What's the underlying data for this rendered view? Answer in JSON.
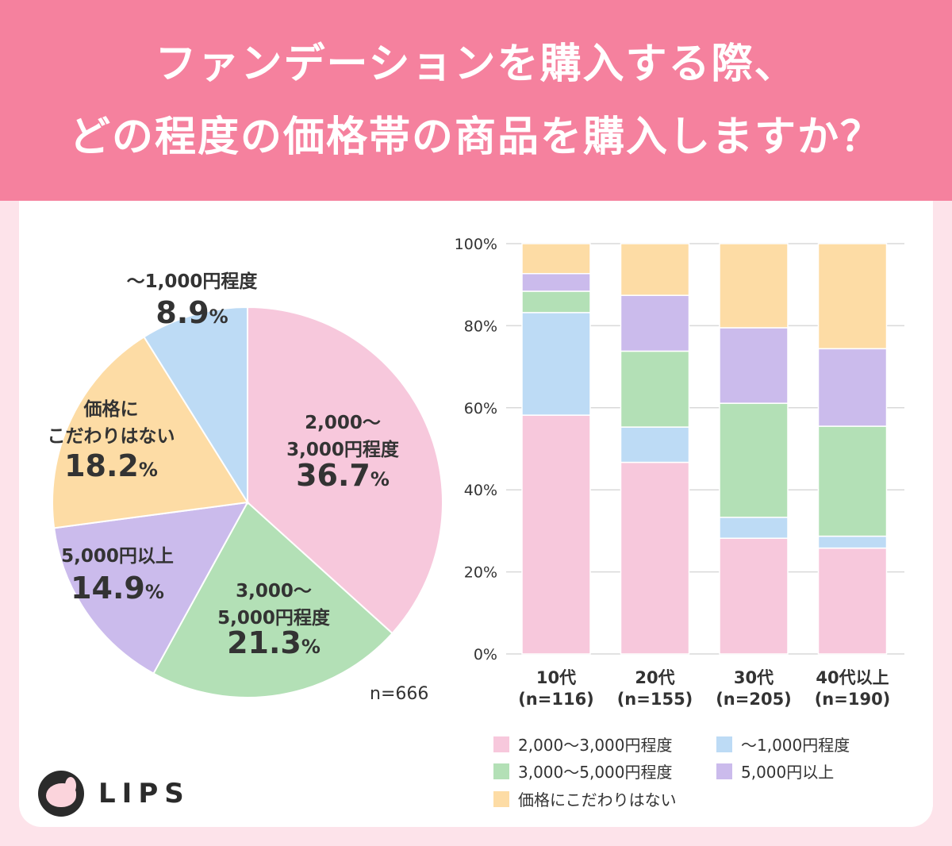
{
  "header": {
    "title_line1": "ファンデーションを購入する際、",
    "title_line2": "どの程度の価格帯の商品を購入しますか？"
  },
  "colors": {
    "header_bg": "#f5819e",
    "page_bg": "#fde3ea",
    "card_bg": "#ffffff",
    "pink": "#f7c8dc",
    "green": "#b3e0b6",
    "blue": "#bddbf5",
    "purple": "#cbbbec",
    "yellow": "#fddca5",
    "text": "#333333"
  },
  "chart_data": [
    {
      "type": "pie",
      "sample_label": "n=666",
      "slices": [
        {
          "label_lines": [
            "2,000〜",
            "3,000円程度"
          ],
          "value": 36.7,
          "value_label": "36.7%",
          "color": "#f7c8dc"
        },
        {
          "label_lines": [
            "3,000〜",
            "5,000円程度"
          ],
          "value": 21.3,
          "value_label": "21.3%",
          "color": "#b3e0b6"
        },
        {
          "label_lines": [
            "5,000円以上"
          ],
          "value": 14.9,
          "value_label": "14.9%",
          "color": "#cbbbec"
        },
        {
          "label_lines": [
            "価格に",
            "こだわりはない"
          ],
          "value": 18.2,
          "value_label": "18.2%",
          "color": "#fddca5"
        },
        {
          "label_lines": [
            "〜1,000円程度"
          ],
          "value": 8.9,
          "value_label": "8.9%",
          "color": "#bddbf5"
        }
      ]
    },
    {
      "type": "bar",
      "stacked": true,
      "ylim": [
        0,
        100
      ],
      "yticks": [
        "0%",
        "20%",
        "40%",
        "60%",
        "80%",
        "100%"
      ],
      "grid": true,
      "categories": [
        [
          "10代",
          "(n=116)"
        ],
        [
          "20代",
          "(n=155)"
        ],
        [
          "30代",
          "(n=205)"
        ],
        [
          "40代以上",
          "(n=190)"
        ]
      ],
      "series": [
        {
          "name": "2,000〜3,000円程度",
          "color": "#f7c8dc",
          "values": [
            58.2,
            46.7,
            28.2,
            25.8
          ]
        },
        {
          "name": "〜1,000円程度",
          "color": "#bddbf5",
          "values": [
            25.0,
            8.6,
            5.1,
            2.9
          ]
        },
        {
          "name": "3,000〜5,000円程度",
          "color": "#b3e0b6",
          "values": [
            5.2,
            18.5,
            27.8,
            26.8
          ]
        },
        {
          "name": "5,000円以上",
          "color": "#cbbbec",
          "values": [
            4.3,
            13.6,
            18.4,
            18.9
          ]
        },
        {
          "name": "価格にこだわりはない",
          "color": "#fddca5",
          "values": [
            7.3,
            12.6,
            20.5,
            25.6
          ]
        }
      ],
      "legend": {
        "placement": "bottom",
        "order": [
          0,
          1,
          2,
          3,
          4
        ]
      }
    }
  ],
  "logo": {
    "text": "LIPS"
  }
}
